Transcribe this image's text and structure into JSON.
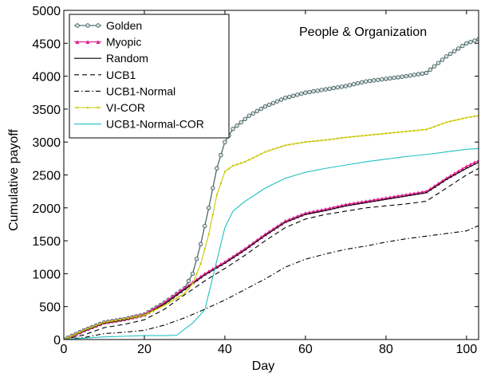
{
  "chart_data": {
    "type": "line",
    "title": "",
    "annotation": "People & Organization",
    "xlabel": "Day",
    "ylabel": "Cumulative payoff",
    "xlim": [
      0,
      103
    ],
    "ylim": [
      0,
      5000
    ],
    "xticks": [
      0,
      20,
      40,
      60,
      80,
      100
    ],
    "yticks": [
      0,
      500,
      1000,
      1500,
      2000,
      2500,
      3000,
      3500,
      4000,
      4500,
      5000
    ],
    "grid": false,
    "legend_position": "top-left",
    "series": [
      {
        "name": "Golden",
        "color": "#2f4f4f",
        "dash": "",
        "marker": "circle",
        "x": [
          0,
          5,
          10,
          15,
          20,
          25,
          30,
          32,
          34,
          36,
          38,
          40,
          42,
          44,
          46,
          50,
          55,
          60,
          65,
          70,
          75,
          80,
          85,
          90,
          95,
          100,
          103
        ],
        "y": [
          0,
          140,
          260,
          310,
          380,
          560,
          780,
          1000,
          1450,
          2000,
          2600,
          3000,
          3200,
          3300,
          3400,
          3540,
          3670,
          3750,
          3800,
          3850,
          3920,
          3960,
          4000,
          4050,
          4300,
          4500,
          4560
        ]
      },
      {
        "name": "Myopic",
        "color": "#e0188c",
        "dash": "",
        "marker": "triangle",
        "x": [
          0,
          5,
          10,
          15,
          20,
          25,
          30,
          35,
          40,
          45,
          50,
          55,
          60,
          65,
          70,
          75,
          80,
          85,
          90,
          95,
          100,
          103
        ],
        "y": [
          0,
          140,
          260,
          310,
          380,
          560,
          780,
          1000,
          1180,
          1380,
          1600,
          1800,
          1920,
          1980,
          2050,
          2100,
          2150,
          2200,
          2250,
          2450,
          2630,
          2720
        ]
      },
      {
        "name": "Random",
        "color": "#000000",
        "dash": "",
        "marker": "none",
        "x": [
          0,
          5,
          10,
          15,
          20,
          25,
          30,
          35,
          40,
          45,
          50,
          55,
          60,
          65,
          70,
          75,
          80,
          85,
          90,
          95,
          100,
          103
        ],
        "y": [
          0,
          130,
          250,
          300,
          370,
          540,
          760,
          980,
          1160,
          1360,
          1580,
          1780,
          1900,
          1960,
          2030,
          2080,
          2130,
          2180,
          2230,
          2430,
          2600,
          2690
        ]
      },
      {
        "name": "UCB1",
        "color": "#000000",
        "dash": "6,4",
        "marker": "none",
        "x": [
          0,
          5,
          10,
          15,
          20,
          25,
          30,
          35,
          40,
          45,
          50,
          55,
          60,
          65,
          70,
          75,
          80,
          85,
          90,
          95,
          100,
          103
        ],
        "y": [
          0,
          70,
          180,
          230,
          300,
          460,
          680,
          890,
          1080,
          1280,
          1500,
          1700,
          1830,
          1900,
          1950,
          2000,
          2030,
          2060,
          2100,
          2300,
          2500,
          2600
        ]
      },
      {
        "name": "UCB1-Normal",
        "color": "#000000",
        "dash": "6,3,1.5,3",
        "marker": "none",
        "x": [
          0,
          5,
          10,
          15,
          20,
          25,
          30,
          35,
          40,
          45,
          50,
          55,
          60,
          65,
          70,
          75,
          80,
          85,
          90,
          95,
          100,
          103
        ],
        "y": [
          0,
          30,
          90,
          110,
          140,
          220,
          330,
          460,
          600,
          760,
          920,
          1100,
          1220,
          1300,
          1370,
          1420,
          1480,
          1530,
          1570,
          1610,
          1650,
          1730
        ]
      },
      {
        "name": "VI-COR",
        "color": "#c8c800",
        "dash": "",
        "marker": "dot",
        "x": [
          0,
          5,
          10,
          15,
          20,
          25,
          30,
          32,
          34,
          36,
          38,
          40,
          42,
          45,
          50,
          55,
          60,
          65,
          70,
          75,
          80,
          85,
          90,
          95,
          100,
          103
        ],
        "y": [
          0,
          140,
          260,
          310,
          370,
          520,
          700,
          850,
          1150,
          1600,
          2200,
          2550,
          2640,
          2700,
          2850,
          2950,
          3000,
          3030,
          3070,
          3100,
          3130,
          3160,
          3190,
          3300,
          3370,
          3400
        ]
      },
      {
        "name": "UCB1-Normal-COR",
        "color": "#20c0c0",
        "dash": "",
        "marker": "none",
        "x": [
          0,
          5,
          10,
          15,
          20,
          25,
          28,
          32,
          35,
          38,
          40,
          42,
          45,
          50,
          55,
          60,
          65,
          70,
          75,
          80,
          85,
          90,
          95,
          100,
          103
        ],
        "y": [
          0,
          20,
          40,
          50,
          60,
          60,
          65,
          250,
          450,
          1200,
          1700,
          1950,
          2100,
          2300,
          2450,
          2540,
          2600,
          2650,
          2700,
          2740,
          2780,
          2810,
          2850,
          2890,
          2900
        ]
      }
    ]
  }
}
